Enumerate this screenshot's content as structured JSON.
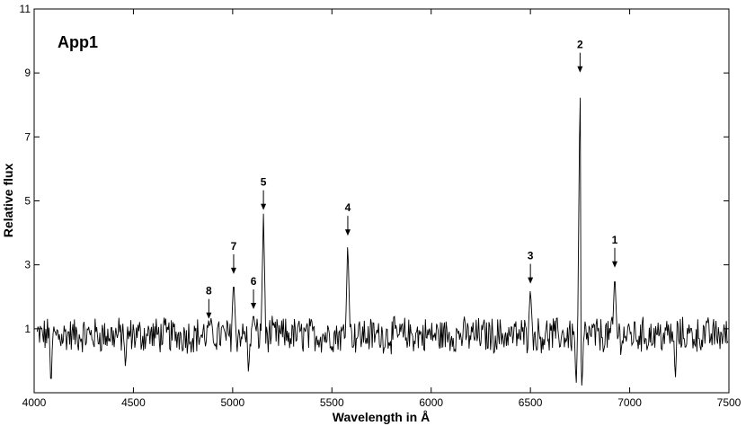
{
  "chart_data": {
    "type": "line",
    "panel_label": "App1",
    "xlabel": "Wavelength in Å",
    "ylabel": "Relative flux",
    "xlim": [
      4000,
      7500
    ],
    "ylim": [
      -1,
      11
    ],
    "x_ticks": [
      4000,
      4500,
      5000,
      5500,
      6000,
      6500,
      7000,
      7500
    ],
    "y_ticks": [
      1,
      3,
      5,
      7,
      9,
      11
    ],
    "grid": false,
    "series": [
      {
        "color": "#000000",
        "baseline": 0.8,
        "noise_amplitude": 0.5,
        "peaks": [
          {
            "x": 4880,
            "y": 1.2
          },
          {
            "x": 5005,
            "y": 2.6
          },
          {
            "x": 5105,
            "y": 1.5
          },
          {
            "x": 5155,
            "y": 4.6
          },
          {
            "x": 5580,
            "y": 3.8
          },
          {
            "x": 6500,
            "y": 2.3
          },
          {
            "x": 6750,
            "y": 8.9
          },
          {
            "x": 6925,
            "y": 2.8
          }
        ],
        "dips": [
          {
            "x": 4085,
            "y": -1.0
          },
          {
            "x": 4460,
            "y": -0.3
          },
          {
            "x": 5080,
            "y": -0.5
          },
          {
            "x": 6730,
            "y": -0.9
          },
          {
            "x": 6760,
            "y": -1.0
          },
          {
            "x": 7230,
            "y": -0.7
          }
        ]
      }
    ],
    "annotations": [
      {
        "label": "1",
        "x": 6925,
        "y": 2.8
      },
      {
        "label": "2",
        "x": 6750,
        "y": 8.9
      },
      {
        "label": "3",
        "x": 6500,
        "y": 2.3
      },
      {
        "label": "4",
        "x": 5580,
        "y": 3.8
      },
      {
        "label": "5",
        "x": 5155,
        "y": 4.6
      },
      {
        "label": "6",
        "x": 5105,
        "y": 1.5
      },
      {
        "label": "7",
        "x": 5005,
        "y": 2.6
      },
      {
        "label": "8",
        "x": 4880,
        "y": 1.2
      }
    ]
  }
}
